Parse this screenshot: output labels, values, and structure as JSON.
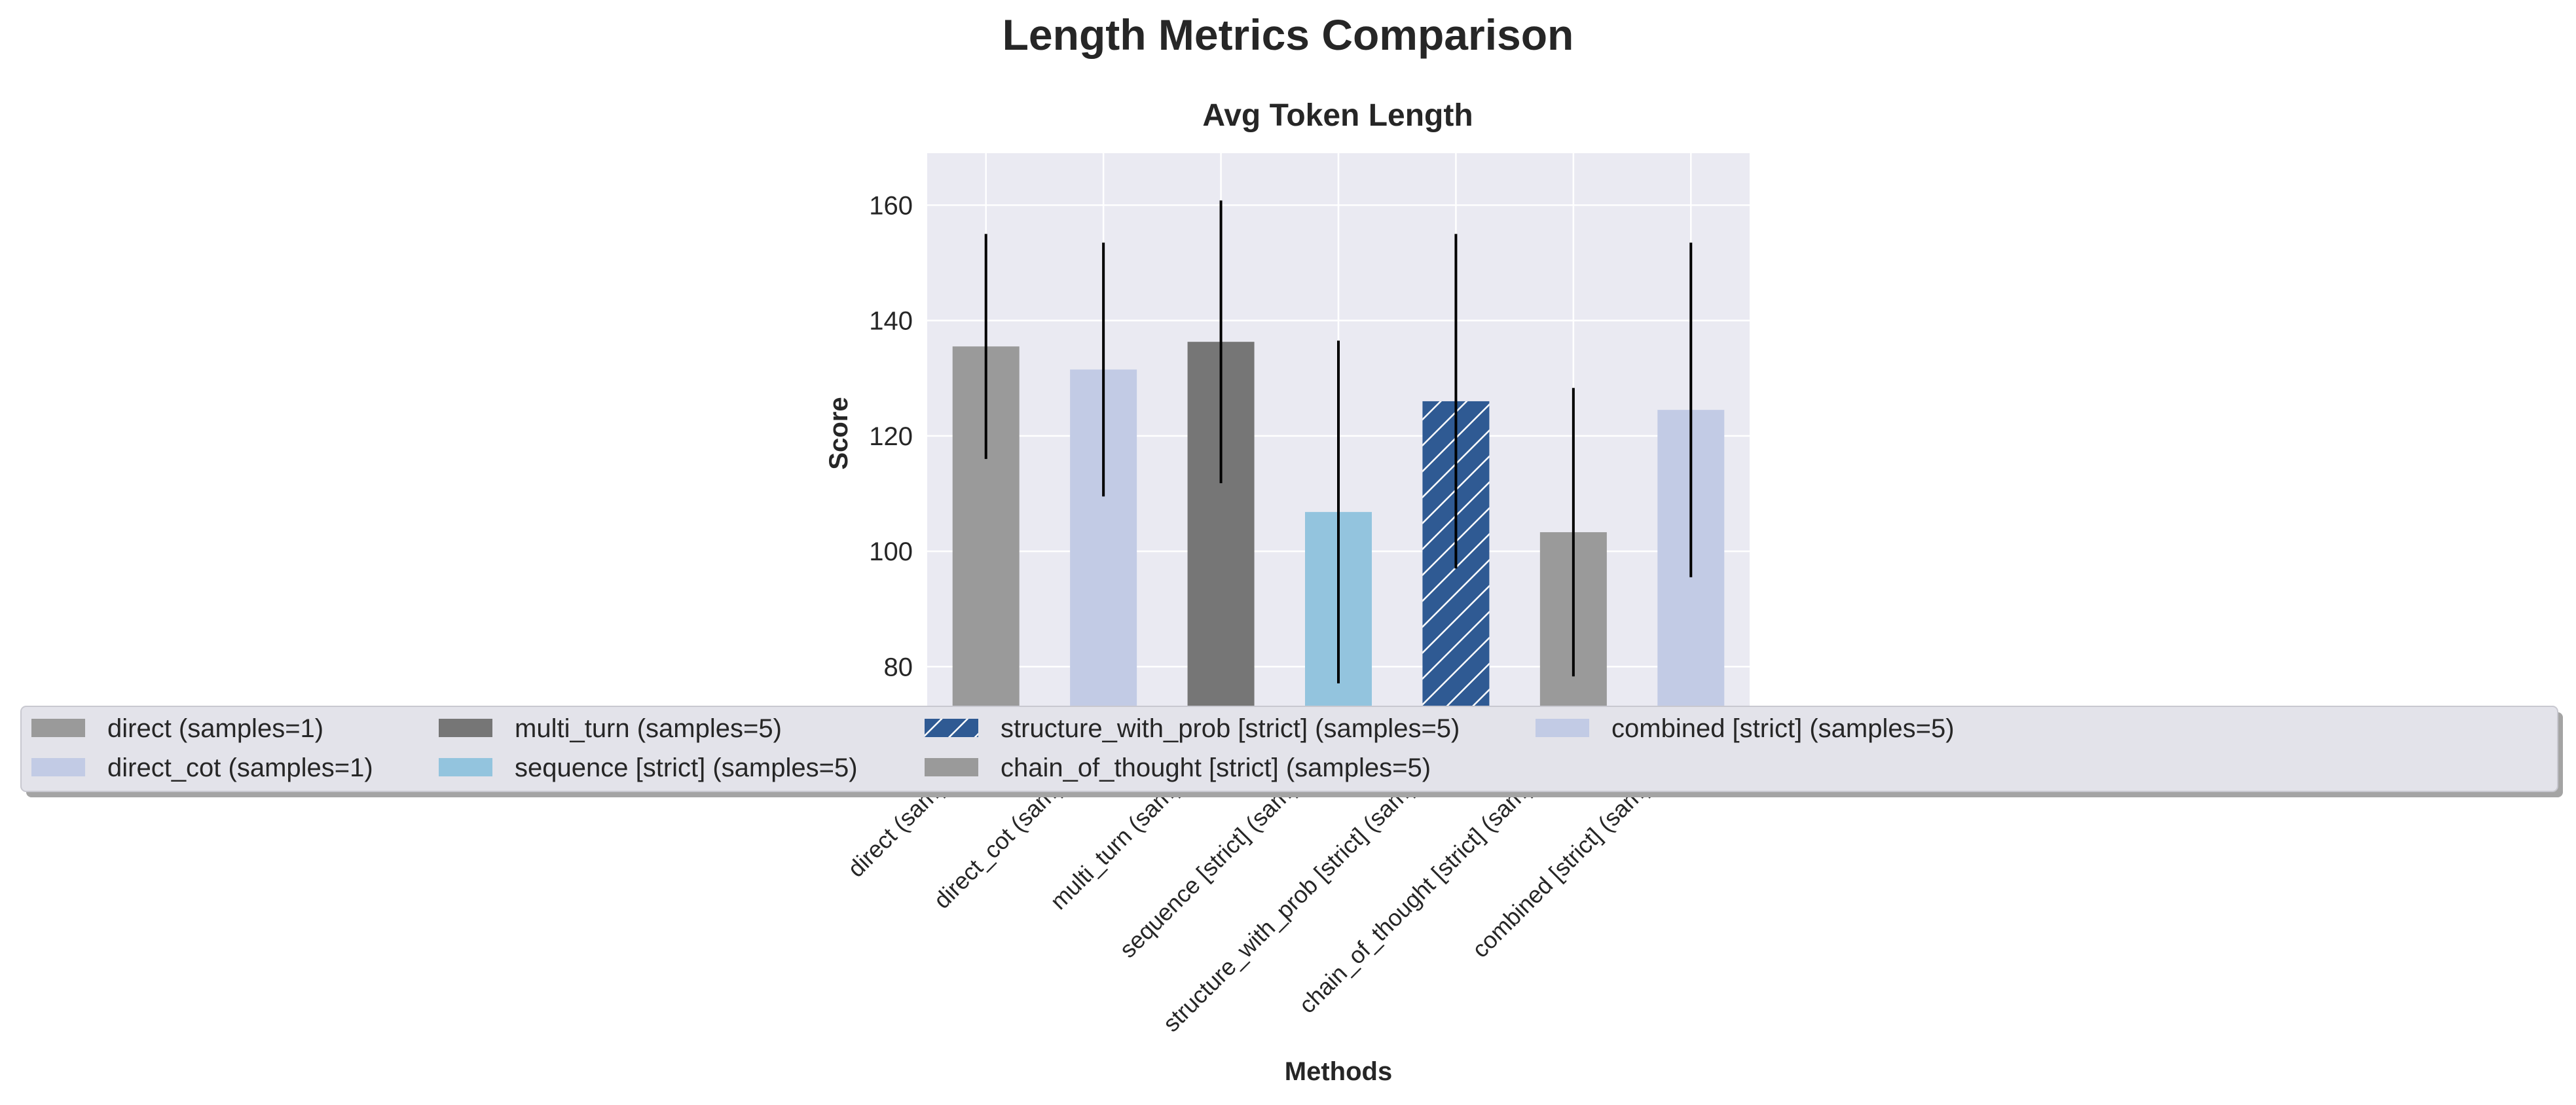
{
  "figure": {
    "title": "Length Metrics Comparison"
  },
  "chart_data": {
    "type": "bar",
    "title": "Avg Token Length",
    "xlabel": "Methods",
    "ylabel": "Score",
    "ylim": [
      73,
      169
    ],
    "yticks": [
      80,
      100,
      120,
      140,
      160
    ],
    "grid": true,
    "legend_position": "lower-center, overlapping plot",
    "legend_columns": 5,
    "categories": [
      "direct (samples=1)",
      "direct_cot (samples=1)",
      "multi_turn (samples=5)",
      "sequence [strict] (samples=5)",
      "structure_with_prob [strict] (samples=5)",
      "chain_of_thought [strict] (samples=5)",
      "combined [strict] (samples=5)"
    ],
    "values": [
      135.5,
      131.5,
      136.3,
      106.8,
      126.0,
      103.3,
      124.5
    ],
    "error": [
      19.5,
      22.0,
      24.5,
      29.7,
      29.0,
      25.0,
      29.0
    ],
    "colors": [
      "#9a9a9a",
      "#c2cbe5",
      "#767676",
      "#93c4de",
      "#2f5a93",
      "#9a9a9a",
      "#c2cbe5"
    ],
    "hatch": [
      false,
      false,
      false,
      false,
      true,
      false,
      false
    ],
    "legend": [
      "direct (samples=1)",
      "direct_cot (samples=1)",
      "multi_turn (samples=5)",
      "sequence [strict] (samples=5)",
      "structure_with_prob [strict] (samples=5)",
      "chain_of_thought [strict] (samples=5)",
      "combined [strict] (samples=5)"
    ],
    "plot_background": "#eaeaf2",
    "grid_color": "#ffffff"
  }
}
